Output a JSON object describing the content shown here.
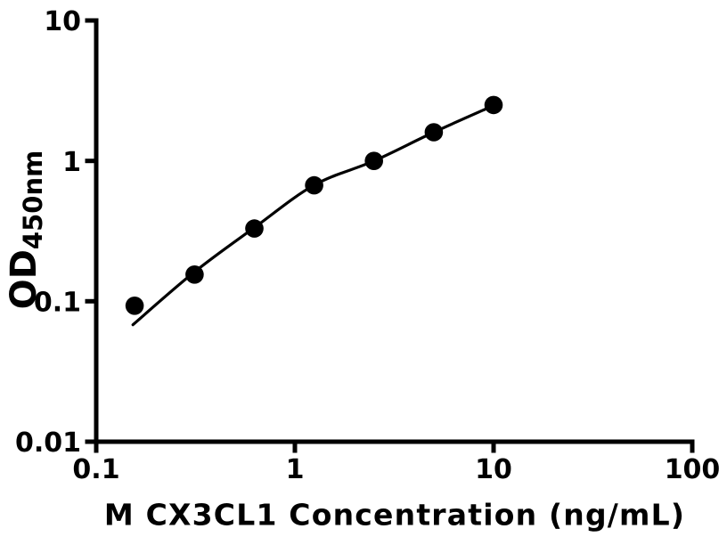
{
  "figure": {
    "background_color": "#ffffff",
    "foreground_color": "#000000"
  },
  "chart_data": {
    "type": "scatter",
    "title": "",
    "xlabel": "M CX3CL1 Concentration (ng/mL)",
    "ylabel_main": "OD",
    "ylabel_sub": "450nm",
    "x_scale": "log",
    "y_scale": "log",
    "xlim": [
      0.1,
      100
    ],
    "ylim": [
      0.01,
      10
    ],
    "x_ticks": [
      0.1,
      1,
      10,
      100
    ],
    "x_tick_labels": [
      "0.1",
      "1",
      "10",
      "100"
    ],
    "y_ticks": [
      0.01,
      0.1,
      1,
      10
    ],
    "y_tick_labels": [
      "0.01",
      "0.1",
      "1",
      "10"
    ],
    "grid": false,
    "legend": false,
    "axis_color": "#000000",
    "series": [
      {
        "name": "standard-points",
        "marker": "filled-circle",
        "marker_color": "#000000",
        "x": [
          0.156,
          0.3125,
          0.625,
          1.25,
          2.5,
          5,
          10
        ],
        "y": [
          0.093,
          0.155,
          0.33,
          0.67,
          1.0,
          1.6,
          2.5
        ]
      }
    ],
    "fit_curve": {
      "name": "fitted-standard-curve",
      "line_color": "#000000",
      "x": [
        0.153,
        0.3125,
        0.625,
        1.25,
        2.5,
        5.0,
        10.0
      ],
      "y": [
        0.068,
        0.162,
        0.335,
        0.672,
        1.0,
        1.6,
        2.48
      ]
    }
  }
}
